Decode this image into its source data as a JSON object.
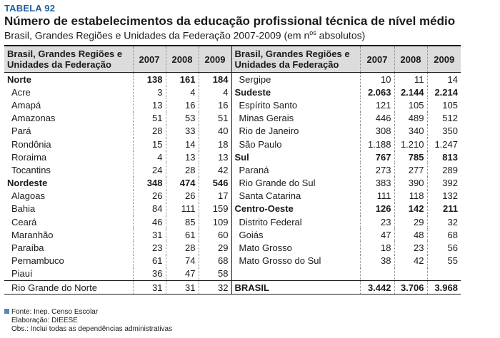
{
  "header": {
    "tag": "TABELA 92",
    "title": "Número de estabelecimentos da educação profissional técnica de nível médio",
    "subtitle_main": "Brasil, Grandes Regiões e Unidades da Federação 2007-2009 (em n",
    "subtitle_sup": "os",
    "subtitle_end": " absolutos)"
  },
  "table": {
    "col_label_line1": "Brasil, Grandes Regiões e",
    "col_label_line2": "Unidades da Federação",
    "years": [
      "2007",
      "2008",
      "2009"
    ],
    "left_rows": [
      {
        "name": "Norte",
        "bold": true,
        "v": [
          "138",
          "161",
          "184"
        ]
      },
      {
        "name": "Acre",
        "bold": false,
        "v": [
          "3",
          "4",
          "4"
        ]
      },
      {
        "name": "Amapá",
        "bold": false,
        "v": [
          "13",
          "16",
          "16"
        ]
      },
      {
        "name": "Amazonas",
        "bold": false,
        "v": [
          "51",
          "53",
          "51"
        ]
      },
      {
        "name": "Pará",
        "bold": false,
        "v": [
          "28",
          "33",
          "40"
        ]
      },
      {
        "name": "Rondônia",
        "bold": false,
        "v": [
          "15",
          "14",
          "18"
        ]
      },
      {
        "name": "Roraima",
        "bold": false,
        "v": [
          "4",
          "13",
          "13"
        ]
      },
      {
        "name": "Tocantins",
        "bold": false,
        "v": [
          "24",
          "28",
          "42"
        ]
      },
      {
        "name": "Nordeste",
        "bold": true,
        "v": [
          "348",
          "474",
          "546"
        ]
      },
      {
        "name": "Alagoas",
        "bold": false,
        "v": [
          "26",
          "26",
          "17"
        ]
      },
      {
        "name": "Bahia",
        "bold": false,
        "v": [
          "84",
          "111",
          "159"
        ]
      },
      {
        "name": "Ceará",
        "bold": false,
        "v": [
          "46",
          "85",
          "109"
        ]
      },
      {
        "name": "Maranhão",
        "bold": false,
        "v": [
          "31",
          "61",
          "60"
        ]
      },
      {
        "name": "Paraíba",
        "bold": false,
        "v": [
          "23",
          "28",
          "29"
        ]
      },
      {
        "name": "Pernambuco",
        "bold": false,
        "v": [
          "61",
          "74",
          "68"
        ]
      },
      {
        "name": "Piauí",
        "bold": false,
        "v": [
          "36",
          "47",
          "58"
        ]
      },
      {
        "name": "Rio Grande do Norte",
        "bold": false,
        "v": [
          "31",
          "31",
          "32"
        ]
      }
    ],
    "right_rows": [
      {
        "name": "Sergipe",
        "bold": false,
        "v": [
          "10",
          "11",
          "14"
        ]
      },
      {
        "name": "Sudeste",
        "bold": true,
        "v": [
          "2.063",
          "2.144",
          "2.214"
        ]
      },
      {
        "name": "Espírito Santo",
        "bold": false,
        "v": [
          "121",
          "105",
          "105"
        ]
      },
      {
        "name": "Minas Gerais",
        "bold": false,
        "v": [
          "446",
          "489",
          "512"
        ]
      },
      {
        "name": "Rio de Janeiro",
        "bold": false,
        "v": [
          "308",
          "340",
          "350"
        ]
      },
      {
        "name": "São Paulo",
        "bold": false,
        "v": [
          "1.188",
          "1.210",
          "1.247"
        ]
      },
      {
        "name": "Sul",
        "bold": true,
        "v": [
          "767",
          "785",
          "813"
        ]
      },
      {
        "name": "Paraná",
        "bold": false,
        "v": [
          "273",
          "277",
          "289"
        ]
      },
      {
        "name": "Rio Grande do Sul",
        "bold": false,
        "v": [
          "383",
          "390",
          "392"
        ]
      },
      {
        "name": "Santa Catarina",
        "bold": false,
        "v": [
          "111",
          "118",
          "132"
        ]
      },
      {
        "name": "Centro-Oeste",
        "bold": true,
        "v": [
          "126",
          "142",
          "211"
        ]
      },
      {
        "name": "Distrito Federal",
        "bold": false,
        "v": [
          "23",
          "29",
          "32"
        ]
      },
      {
        "name": "Goiás",
        "bold": false,
        "v": [
          "47",
          "48",
          "68"
        ]
      },
      {
        "name": "Mato Grosso",
        "bold": false,
        "v": [
          "18",
          "23",
          "56"
        ]
      },
      {
        "name": "Mato Grosso do Sul",
        "bold": false,
        "v": [
          "38",
          "42",
          "55"
        ]
      },
      {
        "name": "",
        "bold": false,
        "v": [
          "",
          "",
          ""
        ]
      },
      {
        "name": "BRASIL",
        "bold": true,
        "v": [
          "3.442",
          "3.706",
          "3.968"
        ]
      }
    ]
  },
  "notes": {
    "source": "Fonte: Inep. Censo Escolar",
    "elaboration": "Elaboração: DIEESE",
    "obs": "Obs.: Inclui todas as dependências administrativas"
  },
  "colors": {
    "tag": "#1f5fa0",
    "header_bg": "#dcdcdc",
    "note_square": "#5b84b8"
  }
}
